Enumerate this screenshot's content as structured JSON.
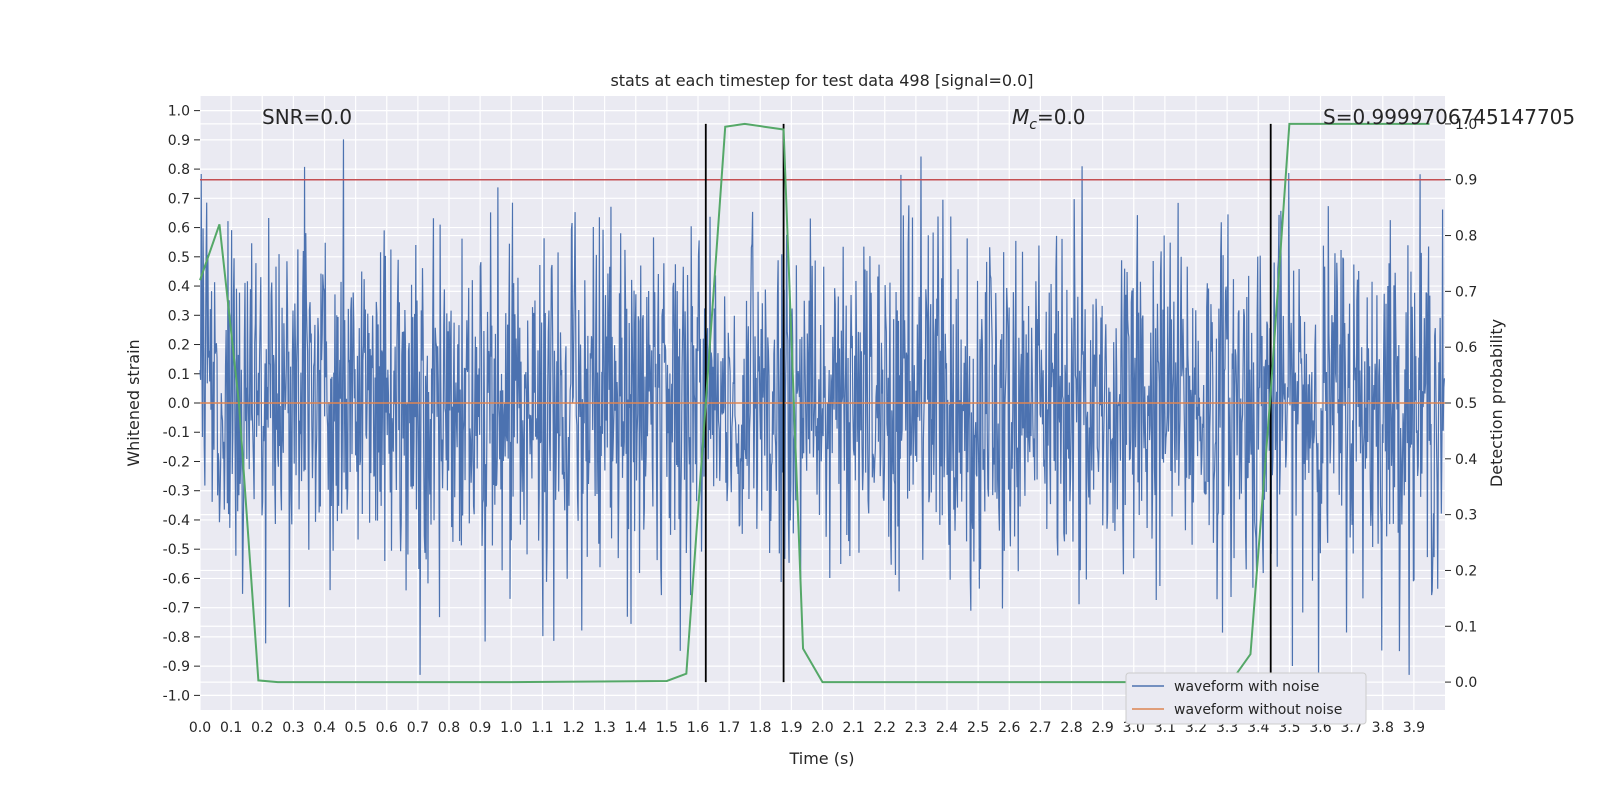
{
  "chart_data": {
    "type": "line",
    "title": "stats at each timestep for test data 498 [signal=0.0]",
    "xlabel": "Time (s)",
    "ylabel": "Whitened strain",
    "y2label": "Detection probability",
    "xlim": [
      0.0,
      4.0
    ],
    "ylim": [
      -1.05,
      1.05
    ],
    "y2lim": [
      -0.05,
      1.05
    ],
    "xticks": [
      "0.0",
      "0.1",
      "0.2",
      "0.3",
      "0.4",
      "0.5",
      "0.6",
      "0.7",
      "0.8",
      "0.9",
      "1.0",
      "1.1",
      "1.2",
      "1.3",
      "1.4",
      "1.5",
      "1.6",
      "1.7",
      "1.8",
      "1.9",
      "2.0",
      "2.1",
      "2.2",
      "2.3",
      "2.4",
      "2.5",
      "2.6",
      "2.7",
      "2.8",
      "2.9",
      "3.0",
      "3.1",
      "3.2",
      "3.3",
      "3.4",
      "3.5",
      "3.6",
      "3.7",
      "3.8",
      "3.9"
    ],
    "yticks": [
      "1.0",
      "0.9",
      "0.8",
      "0.7",
      "0.6",
      "0.5",
      "0.4",
      "0.3",
      "0.2",
      "0.1",
      "0.0",
      "-0.1",
      "-0.2",
      "-0.3",
      "-0.4",
      "-0.5",
      "-0.6",
      "-0.7",
      "-0.8",
      "-0.9",
      "-1.0"
    ],
    "y2ticks": [
      "1.0",
      "0.9",
      "0.8",
      "0.7",
      "0.6",
      "0.5",
      "0.4",
      "0.3",
      "0.2",
      "0.1",
      "0.0"
    ],
    "annotations": {
      "snr": "SNR=0.0",
      "mc_symbol": "M",
      "mc_sub": "c",
      "mc_value": "=0.0",
      "score": "S=0.9999706745147705"
    },
    "legend": {
      "position": "lower-right",
      "entries": [
        "waveform with noise",
        "waveform without noise"
      ]
    },
    "colors": {
      "noise": "#4c72b0",
      "clean": "#dd8452",
      "prob": "#55a868",
      "threshold": "#c44e52",
      "vline": "#000000",
      "bg": "#eaeaf2",
      "grid": "#ffffff"
    },
    "noise_series": {
      "name": "waveform with noise",
      "n_samples": 2048,
      "approx_std": 0.3,
      "approx_range": [
        -0.93,
        1.0
      ]
    },
    "clean_series": {
      "name": "waveform without noise",
      "value": 0.0
    },
    "threshold_prob": 0.9,
    "vlines_x": [
      1.625,
      1.875,
      3.44
    ],
    "prob_series": {
      "name": "Detection probability",
      "x": [
        0.0,
        0.0625,
        0.125,
        0.1875,
        0.25,
        0.5,
        1.0,
        1.5,
        1.5625,
        1.625,
        1.6875,
        1.75,
        1.8125,
        1.875,
        1.9375,
        2.0,
        2.5,
        3.0,
        3.3125,
        3.375,
        3.4375,
        3.5,
        3.75,
        3.95
      ],
      "y": [
        0.72,
        0.82,
        0.5,
        0.003,
        0.0,
        0.0,
        0.0,
        0.002,
        0.015,
        0.5,
        0.995,
        1.0,
        0.995,
        0.99,
        0.06,
        0.0,
        0.0,
        0.0,
        0.001,
        0.05,
        0.5,
        1.0,
        1.0,
        1.0
      ]
    }
  }
}
